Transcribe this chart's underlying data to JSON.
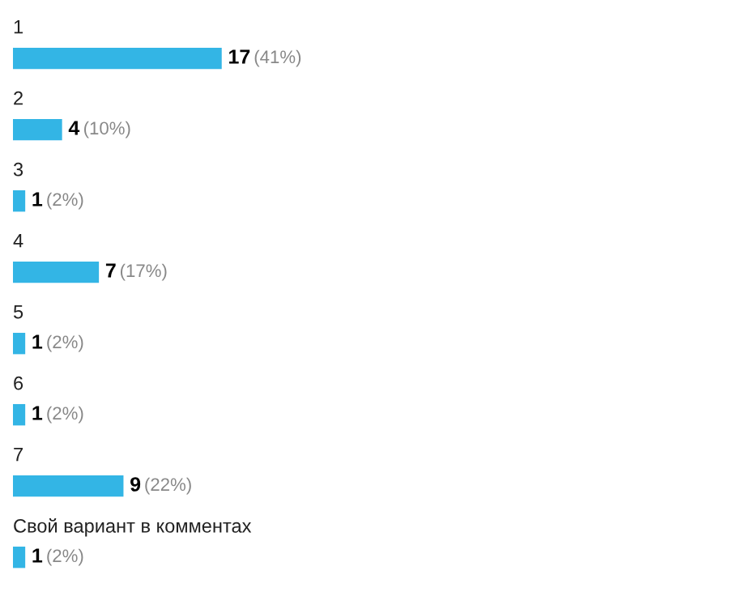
{
  "chart_data": {
    "type": "bar",
    "orientation": "horizontal",
    "categories": [
      "1",
      "2",
      "3",
      "4",
      "5",
      "6",
      "7",
      "Свой вариант в комментах"
    ],
    "values": [
      17,
      4,
      1,
      7,
      1,
      1,
      9,
      1
    ],
    "value_labels": [
      "17 (41%)",
      "4 (10%)",
      "1 (2%)",
      "7 (17%)",
      "1 (2%)",
      "1 (2%)",
      "9 (22%)",
      "1 (2%)"
    ],
    "color": "#33b5e5"
  }
}
